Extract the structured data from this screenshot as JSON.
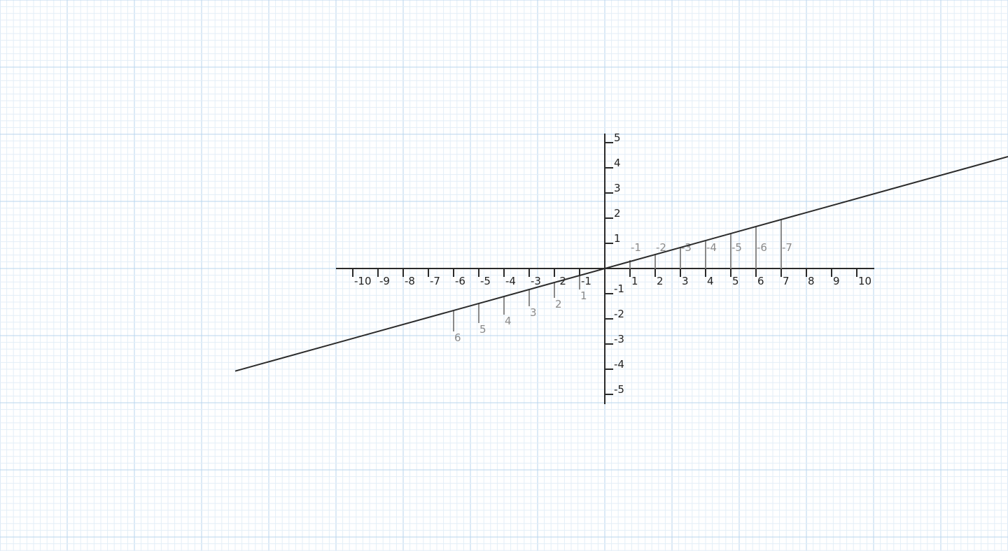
{
  "canvas": {
    "background": "#ffffff",
    "grid_minor_color": "#e3eef7",
    "grid_major_color": "#b8d6ee"
  },
  "axes": {
    "color": "#2a2a2a",
    "x_ticks": [
      {
        "value": -10,
        "label": "-10"
      },
      {
        "value": -9,
        "label": "-9"
      },
      {
        "value": -8,
        "label": "-8"
      },
      {
        "value": -7,
        "label": "-7"
      },
      {
        "value": -6,
        "label": "-6"
      },
      {
        "value": -5,
        "label": "-5"
      },
      {
        "value": -4,
        "label": "-4"
      },
      {
        "value": -3,
        "label": "-3"
      },
      {
        "value": -2,
        "label": "-2"
      },
      {
        "value": -1,
        "label": "-1"
      },
      {
        "value": 1,
        "label": "1"
      },
      {
        "value": 2,
        "label": "2"
      },
      {
        "value": 3,
        "label": "3"
      },
      {
        "value": 4,
        "label": "4"
      },
      {
        "value": 5,
        "label": "5"
      },
      {
        "value": 6,
        "label": "6"
      },
      {
        "value": 7,
        "label": "7"
      },
      {
        "value": 8,
        "label": "8"
      },
      {
        "value": 9,
        "label": "9"
      },
      {
        "value": 10,
        "label": "10"
      }
    ],
    "y_ticks": [
      {
        "value": 5,
        "label": "5"
      },
      {
        "value": 4,
        "label": "4"
      },
      {
        "value": 3,
        "label": "3"
      },
      {
        "value": 2,
        "label": "2"
      },
      {
        "value": 1,
        "label": "1"
      },
      {
        "value": -1,
        "label": "-1"
      },
      {
        "value": -2,
        "label": "-2"
      },
      {
        "value": -3,
        "label": "-3"
      },
      {
        "value": -4,
        "label": "-4"
      },
      {
        "value": -5,
        "label": "-5"
      }
    ]
  },
  "line": {
    "color": "#2a2a2a",
    "slope_y_per_x": 0.2778
  },
  "guides": {
    "color": "#8a8a8a",
    "right": [
      {
        "x": 1,
        "label": "-1"
      },
      {
        "x": 2,
        "label": "-2"
      },
      {
        "x": 3,
        "label": "-3"
      },
      {
        "x": 4,
        "label": "-4"
      },
      {
        "x": 5,
        "label": "-5"
      },
      {
        "x": 6,
        "label": "-6"
      },
      {
        "x": 7,
        "label": "-7"
      }
    ],
    "left": [
      {
        "x": -1,
        "label": "1"
      },
      {
        "x": -2,
        "label": "2"
      },
      {
        "x": -3,
        "label": "3"
      },
      {
        "x": -4,
        "label": "4"
      },
      {
        "x": -5,
        "label": "5"
      },
      {
        "x": -6,
        "label": "6"
      }
    ]
  }
}
